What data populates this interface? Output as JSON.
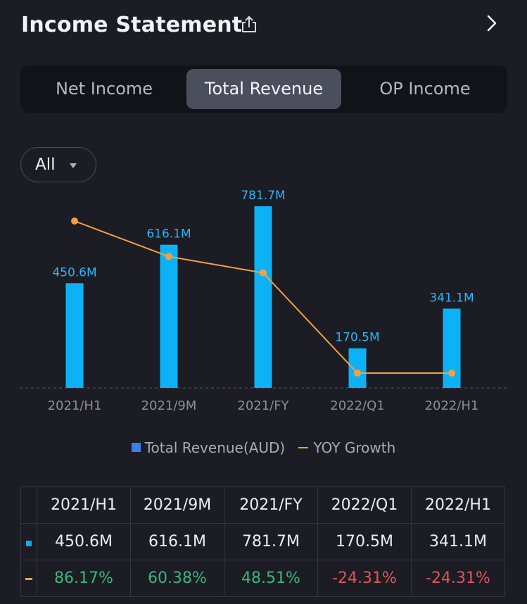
{
  "header": {
    "title": "Income Statement",
    "share_icon": "share-icon",
    "next_icon": "chevron-right-icon"
  },
  "tabs": [
    {
      "label": "Net Income",
      "active": false
    },
    {
      "label": "Total Revenue",
      "active": true
    },
    {
      "label": "OP Income",
      "active": false
    }
  ],
  "filter": {
    "label": "All",
    "icon": "caret-down-icon"
  },
  "legend": {
    "bar_label": "Total Revenue(AUD)",
    "line_label": "YOY Growth"
  },
  "colors": {
    "bar": "#0db2f6",
    "line": "#f2a142",
    "legend_square": "#3f7cf0",
    "positive": "#36b87a",
    "negative": "#e45458",
    "background": "#1b1c24"
  },
  "chart_data": {
    "type": "bar",
    "categories": [
      "2021/H1",
      "2021/9M",
      "2021/FY",
      "2022/Q1",
      "2022/H1"
    ],
    "series": [
      {
        "name": "Total Revenue(AUD)",
        "type": "bar",
        "values": [
          450.6,
          616.1,
          781.7,
          170.5,
          341.1
        ],
        "labels": [
          "450.6M",
          "616.1M",
          "781.7M",
          "170.5M",
          "341.1M"
        ]
      },
      {
        "name": "YOY Growth",
        "type": "line",
        "values": [
          86.17,
          60.38,
          48.51,
          -24.31,
          -24.31
        ]
      }
    ],
    "baseline": "dashed",
    "grid": false,
    "legend": "bottom-center"
  },
  "table": {
    "headers": [
      "2021/H1",
      "2021/9M",
      "2021/FY",
      "2022/Q1",
      "2022/H1"
    ],
    "revenue_row": [
      "450.6M",
      "616.1M",
      "781.7M",
      "170.5M",
      "341.1M"
    ],
    "growth_row": [
      "86.17%",
      "60.38%",
      "48.51%",
      "-24.31%",
      "-24.31%"
    ]
  }
}
